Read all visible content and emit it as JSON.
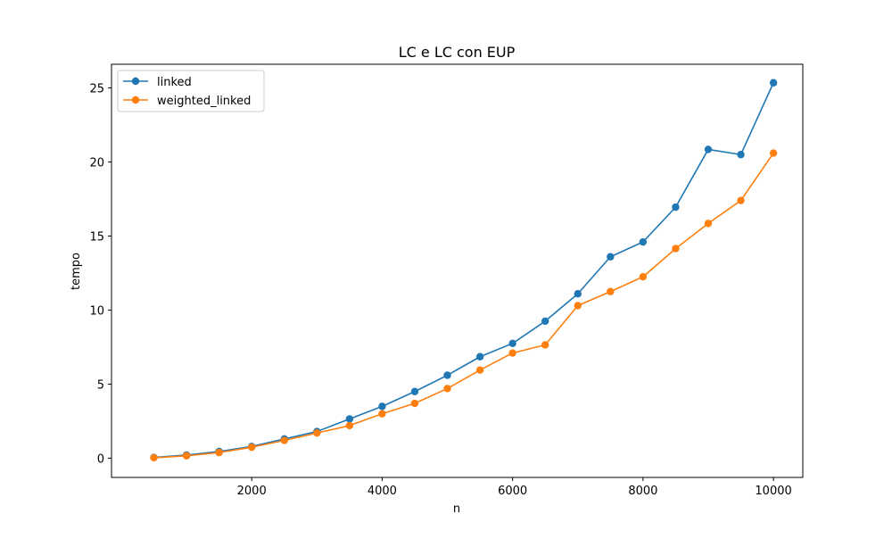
{
  "chart_data": {
    "type": "line",
    "title": "LC e LC con EUP",
    "xlabel": "n",
    "ylabel": "tempo",
    "xlim": [
      -150,
      10450
    ],
    "ylim": [
      -1.3,
      26.6
    ],
    "xticks": [
      2000,
      4000,
      6000,
      8000,
      10000
    ],
    "yticks": [
      0,
      5,
      10,
      15,
      20,
      25
    ],
    "grid": false,
    "legend_position": "top-left",
    "x": [
      500,
      1000,
      1500,
      2000,
      2500,
      3000,
      3500,
      4000,
      4500,
      5000,
      5500,
      6000,
      6500,
      7000,
      7500,
      8000,
      8500,
      9000,
      9500,
      10000
    ],
    "series": [
      {
        "name": "linked",
        "color": "#1f77b4",
        "values": [
          0.05,
          0.21,
          0.45,
          0.79,
          1.3,
          1.8,
          2.65,
          3.5,
          4.5,
          5.6,
          6.85,
          7.75,
          9.25,
          11.1,
          13.6,
          14.6,
          16.95,
          20.85,
          20.5,
          25.35
        ]
      },
      {
        "name": "weighted_linked",
        "color": "#ff7f0e",
        "values": [
          0.03,
          0.16,
          0.38,
          0.74,
          1.2,
          1.7,
          2.2,
          3.0,
          3.7,
          4.7,
          5.95,
          7.1,
          7.65,
          10.3,
          11.25,
          12.25,
          14.15,
          15.85,
          17.4,
          20.6
        ]
      }
    ]
  }
}
